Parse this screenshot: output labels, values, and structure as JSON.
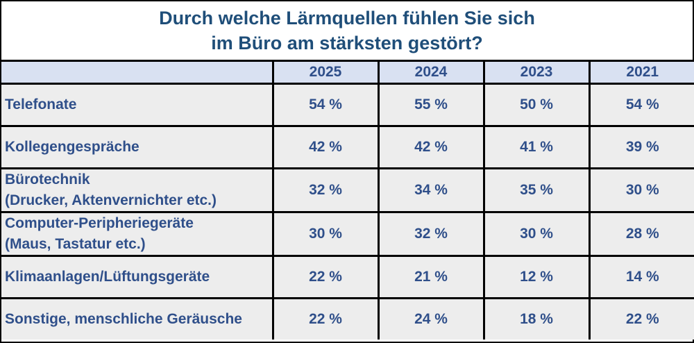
{
  "title": {
    "line1": "Durch welche Lärmquellen fühlen Sie sich",
    "line2": "im Büro am stärksten gestört?"
  },
  "table": {
    "corner": "",
    "columns": [
      "2025",
      "2024",
      "2023",
      "2021"
    ],
    "rows": [
      {
        "label_line1": "Telefonate",
        "label_line2": "",
        "values": [
          "54 %",
          "55 %",
          "50 %",
          "54 %"
        ]
      },
      {
        "label_line1": "Kollegengespräche",
        "label_line2": "",
        "values": [
          "42 %",
          "42 %",
          "41 %",
          "39 %"
        ]
      },
      {
        "label_line1": "Bürotechnik",
        "label_line2": "(Drucker, Aktenvernichter etc.)",
        "values": [
          "32 %",
          "34 %",
          "35 %",
          "30 %"
        ]
      },
      {
        "label_line1": "Computer-Peripheriegeräte",
        "label_line2": "(Maus, Tastatur etc.)",
        "values": [
          "30 %",
          "32 %",
          "30 %",
          "28 %"
        ]
      },
      {
        "label_line1": "Klimaanlagen/Lüftungsgeräte",
        "label_line2": "",
        "values": [
          "22 %",
          "21 %",
          "12 %",
          "14 %"
        ]
      },
      {
        "label_line1": "Sonstige, menschliche Geräusche",
        "label_line2": "",
        "values": [
          "22 %",
          "24 %",
          "18 %",
          "22 %"
        ]
      }
    ]
  },
  "colors": {
    "title_text": "#1f4e79",
    "cell_text": "#2f4f8a",
    "header_bg": "#d9e1f2",
    "row_bg": "#ededed",
    "border": "#000000"
  }
}
